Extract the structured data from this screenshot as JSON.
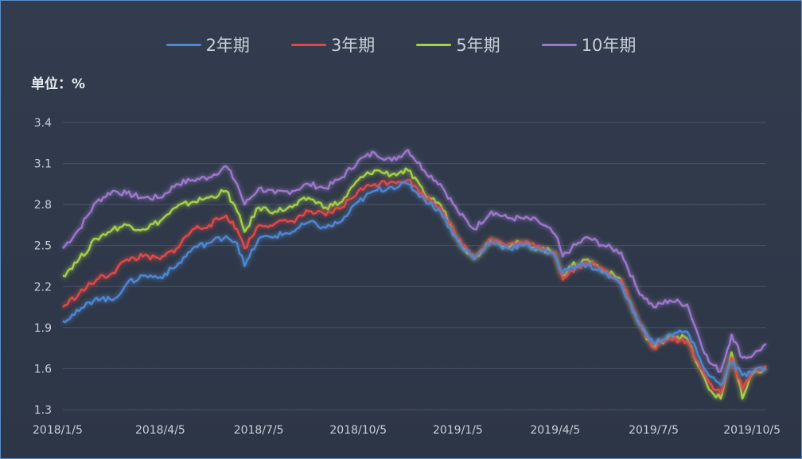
{
  "chart_data": {
    "type": "line",
    "unit_label": "单位：%",
    "ylim": [
      1.3,
      3.4
    ],
    "yticks": [
      1.3,
      1.6,
      1.9,
      2.2,
      2.5,
      2.8,
      3.1,
      3.4
    ],
    "xlim": [
      "2018-01-05",
      "2019-10-17"
    ],
    "xticks": [
      "2018-01-05",
      "2018-04-05",
      "2018-07-05",
      "2018-10-05",
      "2019-01-05",
      "2019-04-05",
      "2019-07-05",
      "2019-10-05"
    ],
    "xtick_labels": [
      "2018/1/5",
      "2018/4/5",
      "2018/7/5",
      "2018/10/5",
      "2019/1/5",
      "2019/4/5",
      "2019/7/5",
      "2019/10/5"
    ],
    "grid": true,
    "legend_position": "top-center",
    "series": [
      {
        "name": "2年期",
        "color": "#4f86d0",
        "points": [
          [
            "2018-01-05",
            1.95
          ],
          [
            "2018-01-20",
            2.02
          ],
          [
            "2018-02-05",
            2.12
          ],
          [
            "2018-02-20",
            2.1
          ],
          [
            "2018-03-05",
            2.22
          ],
          [
            "2018-03-20",
            2.28
          ],
          [
            "2018-04-05",
            2.27
          ],
          [
            "2018-04-20",
            2.35
          ],
          [
            "2018-05-05",
            2.48
          ],
          [
            "2018-05-20",
            2.52
          ],
          [
            "2018-06-05",
            2.57
          ],
          [
            "2018-06-15",
            2.52
          ],
          [
            "2018-06-22",
            2.35
          ],
          [
            "2018-07-05",
            2.55
          ],
          [
            "2018-07-20",
            2.57
          ],
          [
            "2018-08-05",
            2.6
          ],
          [
            "2018-08-20",
            2.67
          ],
          [
            "2018-09-05",
            2.63
          ],
          [
            "2018-09-20",
            2.68
          ],
          [
            "2018-10-05",
            2.82
          ],
          [
            "2018-10-20",
            2.9
          ],
          [
            "2018-11-05",
            2.93
          ],
          [
            "2018-11-20",
            2.95
          ],
          [
            "2018-12-05",
            2.84
          ],
          [
            "2018-12-20",
            2.75
          ],
          [
            "2019-01-05",
            2.53
          ],
          [
            "2019-01-20",
            2.4
          ],
          [
            "2019-02-05",
            2.53
          ],
          [
            "2019-02-20",
            2.48
          ],
          [
            "2019-03-05",
            2.5
          ],
          [
            "2019-03-20",
            2.48
          ],
          [
            "2019-04-05",
            2.42
          ],
          [
            "2019-04-12",
            2.3
          ],
          [
            "2019-04-20",
            2.35
          ],
          [
            "2019-05-05",
            2.36
          ],
          [
            "2019-05-20",
            2.3
          ],
          [
            "2019-06-05",
            2.22
          ],
          [
            "2019-06-20",
            1.95
          ],
          [
            "2019-07-05",
            1.78
          ],
          [
            "2019-07-20",
            1.85
          ],
          [
            "2019-08-05",
            1.87
          ],
          [
            "2019-08-15",
            1.7
          ],
          [
            "2019-08-25",
            1.55
          ],
          [
            "2019-09-05",
            1.48
          ],
          [
            "2019-09-15",
            1.65
          ],
          [
            "2019-09-25",
            1.55
          ],
          [
            "2019-10-05",
            1.58
          ],
          [
            "2019-10-17",
            1.6
          ]
        ]
      },
      {
        "name": "3年期",
        "color": "#e04a46",
        "points": [
          [
            "2018-01-05",
            2.05
          ],
          [
            "2018-01-20",
            2.15
          ],
          [
            "2018-02-05",
            2.25
          ],
          [
            "2018-02-20",
            2.3
          ],
          [
            "2018-03-05",
            2.4
          ],
          [
            "2018-03-20",
            2.42
          ],
          [
            "2018-04-05",
            2.4
          ],
          [
            "2018-04-20",
            2.48
          ],
          [
            "2018-05-05",
            2.62
          ],
          [
            "2018-05-20",
            2.65
          ],
          [
            "2018-06-05",
            2.72
          ],
          [
            "2018-06-15",
            2.62
          ],
          [
            "2018-06-22",
            2.48
          ],
          [
            "2018-07-05",
            2.65
          ],
          [
            "2018-07-20",
            2.66
          ],
          [
            "2018-08-05",
            2.68
          ],
          [
            "2018-08-20",
            2.75
          ],
          [
            "2018-09-05",
            2.72
          ],
          [
            "2018-09-20",
            2.78
          ],
          [
            "2018-10-05",
            2.9
          ],
          [
            "2018-10-20",
            2.95
          ],
          [
            "2018-11-05",
            2.97
          ],
          [
            "2018-11-20",
            2.98
          ],
          [
            "2018-12-05",
            2.86
          ],
          [
            "2018-12-20",
            2.78
          ],
          [
            "2019-01-05",
            2.55
          ],
          [
            "2019-01-20",
            2.42
          ],
          [
            "2019-02-05",
            2.55
          ],
          [
            "2019-02-20",
            2.5
          ],
          [
            "2019-03-05",
            2.52
          ],
          [
            "2019-03-20",
            2.5
          ],
          [
            "2019-04-05",
            2.45
          ],
          [
            "2019-04-12",
            2.25
          ],
          [
            "2019-04-20",
            2.32
          ],
          [
            "2019-05-05",
            2.38
          ],
          [
            "2019-05-20",
            2.32
          ],
          [
            "2019-06-05",
            2.25
          ],
          [
            "2019-06-20",
            1.95
          ],
          [
            "2019-07-05",
            1.75
          ],
          [
            "2019-07-20",
            1.82
          ],
          [
            "2019-08-05",
            1.8
          ],
          [
            "2019-08-15",
            1.65
          ],
          [
            "2019-08-25",
            1.5
          ],
          [
            "2019-09-05",
            1.42
          ],
          [
            "2019-09-15",
            1.68
          ],
          [
            "2019-09-25",
            1.45
          ],
          [
            "2019-10-05",
            1.58
          ],
          [
            "2019-10-17",
            1.62
          ]
        ]
      },
      {
        "name": "5年期",
        "color": "#a6cf4c",
        "points": [
          [
            "2018-01-05",
            2.28
          ],
          [
            "2018-01-20",
            2.4
          ],
          [
            "2018-02-05",
            2.55
          ],
          [
            "2018-02-20",
            2.62
          ],
          [
            "2018-03-05",
            2.65
          ],
          [
            "2018-03-20",
            2.62
          ],
          [
            "2018-04-05",
            2.68
          ],
          [
            "2018-04-20",
            2.78
          ],
          [
            "2018-05-05",
            2.82
          ],
          [
            "2018-05-20",
            2.85
          ],
          [
            "2018-06-05",
            2.9
          ],
          [
            "2018-06-15",
            2.75
          ],
          [
            "2018-06-22",
            2.6
          ],
          [
            "2018-07-05",
            2.78
          ],
          [
            "2018-07-20",
            2.75
          ],
          [
            "2018-08-05",
            2.78
          ],
          [
            "2018-08-20",
            2.85
          ],
          [
            "2018-09-05",
            2.78
          ],
          [
            "2018-09-20",
            2.82
          ],
          [
            "2018-10-05",
            2.98
          ],
          [
            "2018-10-20",
            3.05
          ],
          [
            "2018-11-05",
            3.02
          ],
          [
            "2018-11-20",
            3.05
          ],
          [
            "2018-12-05",
            2.88
          ],
          [
            "2018-12-20",
            2.8
          ],
          [
            "2019-01-05",
            2.55
          ],
          [
            "2019-01-20",
            2.4
          ],
          [
            "2019-02-05",
            2.55
          ],
          [
            "2019-02-20",
            2.5
          ],
          [
            "2019-03-05",
            2.52
          ],
          [
            "2019-03-20",
            2.48
          ],
          [
            "2019-04-05",
            2.45
          ],
          [
            "2019-04-12",
            2.28
          ],
          [
            "2019-04-20",
            2.35
          ],
          [
            "2019-05-05",
            2.4
          ],
          [
            "2019-05-20",
            2.32
          ],
          [
            "2019-06-05",
            2.25
          ],
          [
            "2019-06-20",
            1.95
          ],
          [
            "2019-07-05",
            1.75
          ],
          [
            "2019-07-20",
            1.85
          ],
          [
            "2019-08-05",
            1.82
          ],
          [
            "2019-08-15",
            1.62
          ],
          [
            "2019-08-25",
            1.45
          ],
          [
            "2019-09-05",
            1.38
          ],
          [
            "2019-09-15",
            1.72
          ],
          [
            "2019-09-25",
            1.38
          ],
          [
            "2019-10-05",
            1.57
          ],
          [
            "2019-10-17",
            1.6
          ]
        ]
      },
      {
        "name": "10年期",
        "color": "#9b78c9",
        "points": [
          [
            "2018-01-05",
            2.48
          ],
          [
            "2018-01-20",
            2.62
          ],
          [
            "2018-02-05",
            2.82
          ],
          [
            "2018-02-20",
            2.9
          ],
          [
            "2018-03-05",
            2.88
          ],
          [
            "2018-03-20",
            2.85
          ],
          [
            "2018-04-05",
            2.85
          ],
          [
            "2018-04-20",
            2.95
          ],
          [
            "2018-05-05",
            2.98
          ],
          [
            "2018-05-20",
            3.0
          ],
          [
            "2018-06-05",
            3.08
          ],
          [
            "2018-06-15",
            2.95
          ],
          [
            "2018-06-22",
            2.8
          ],
          [
            "2018-07-05",
            2.92
          ],
          [
            "2018-07-20",
            2.88
          ],
          [
            "2018-08-05",
            2.9
          ],
          [
            "2018-08-20",
            2.95
          ],
          [
            "2018-09-05",
            2.92
          ],
          [
            "2018-09-20",
            3.0
          ],
          [
            "2018-10-05",
            3.12
          ],
          [
            "2018-10-20",
            3.18
          ],
          [
            "2018-11-05",
            3.12
          ],
          [
            "2018-11-20",
            3.2
          ],
          [
            "2018-12-05",
            3.05
          ],
          [
            "2018-12-20",
            2.95
          ],
          [
            "2019-01-05",
            2.75
          ],
          [
            "2019-01-20",
            2.62
          ],
          [
            "2019-02-05",
            2.75
          ],
          [
            "2019-02-20",
            2.7
          ],
          [
            "2019-03-05",
            2.7
          ],
          [
            "2019-03-20",
            2.68
          ],
          [
            "2019-04-05",
            2.58
          ],
          [
            "2019-04-12",
            2.42
          ],
          [
            "2019-04-20",
            2.48
          ],
          [
            "2019-05-05",
            2.56
          ],
          [
            "2019-05-20",
            2.5
          ],
          [
            "2019-06-05",
            2.45
          ],
          [
            "2019-06-20",
            2.18
          ],
          [
            "2019-07-05",
            2.05
          ],
          [
            "2019-07-20",
            2.1
          ],
          [
            "2019-08-05",
            2.07
          ],
          [
            "2019-08-15",
            1.85
          ],
          [
            "2019-08-25",
            1.65
          ],
          [
            "2019-09-05",
            1.58
          ],
          [
            "2019-09-15",
            1.85
          ],
          [
            "2019-09-25",
            1.68
          ],
          [
            "2019-10-05",
            1.7
          ],
          [
            "2019-10-17",
            1.78
          ]
        ]
      }
    ]
  }
}
